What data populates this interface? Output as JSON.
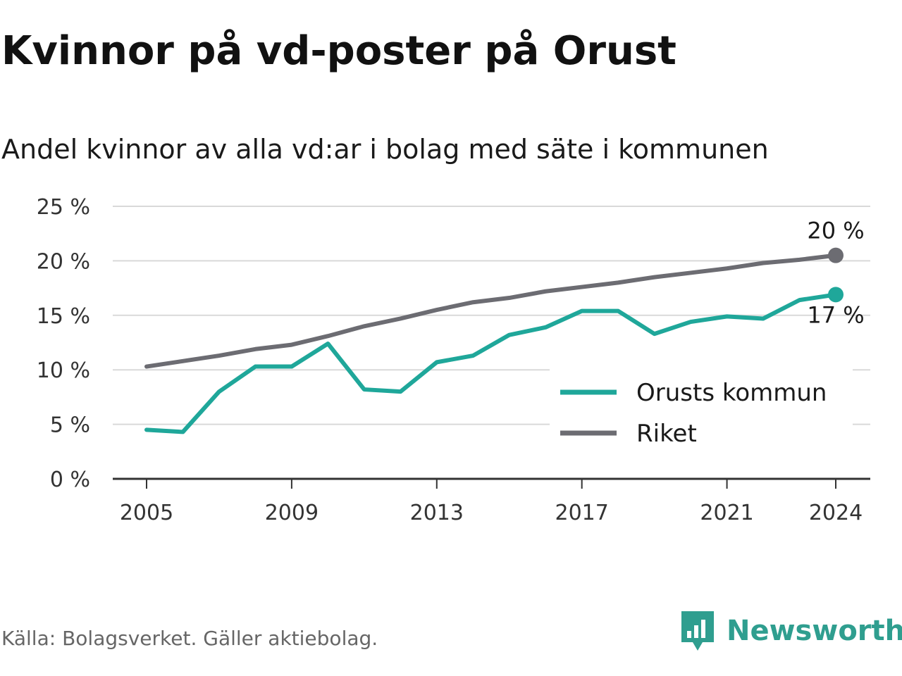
{
  "title": "Kvinnor på vd-poster på Orust",
  "subtitle": "Andel kvinnor av alla vd:ar i bolag med säte i kommunen",
  "source": "Källa: Bolagsverket. Gäller aktiebolag.",
  "brand": "Newsworthy",
  "chart_data": {
    "type": "line",
    "x": [
      2005,
      2006,
      2007,
      2008,
      2009,
      2010,
      2011,
      2012,
      2013,
      2014,
      2015,
      2016,
      2017,
      2018,
      2019,
      2020,
      2021,
      2022,
      2023,
      2024
    ],
    "x_ticks": [
      2005,
      2009,
      2013,
      2017,
      2021,
      2024
    ],
    "x_tick_labels": [
      "2005",
      "2009",
      "2013",
      "2017",
      "2021",
      "2024"
    ],
    "ylim": [
      0,
      25
    ],
    "y_ticks": [
      0,
      5,
      10,
      15,
      20,
      25
    ],
    "y_tick_labels": [
      "0 %",
      "5 %",
      "10 %",
      "15 %",
      "20 %",
      "25 %"
    ],
    "grid": true,
    "legend_position": "bottom-right",
    "series": [
      {
        "name": "Orusts kommun",
        "color": "#1fa79a",
        "values": [
          4.5,
          4.3,
          8.0,
          10.3,
          10.3,
          12.4,
          8.2,
          8.0,
          10.7,
          11.3,
          13.2,
          13.9,
          15.4,
          15.4,
          13.3,
          14.4,
          14.9,
          14.7,
          16.4,
          16.9
        ],
        "end_label": "17 %"
      },
      {
        "name": "Riket",
        "color": "#6c6c72",
        "values": [
          10.3,
          10.8,
          11.3,
          11.9,
          12.3,
          13.1,
          14.0,
          14.7,
          15.5,
          16.2,
          16.6,
          17.2,
          17.6,
          18.0,
          18.5,
          18.9,
          19.3,
          19.8,
          20.1,
          20.5
        ],
        "end_label": "20 %"
      }
    ]
  }
}
